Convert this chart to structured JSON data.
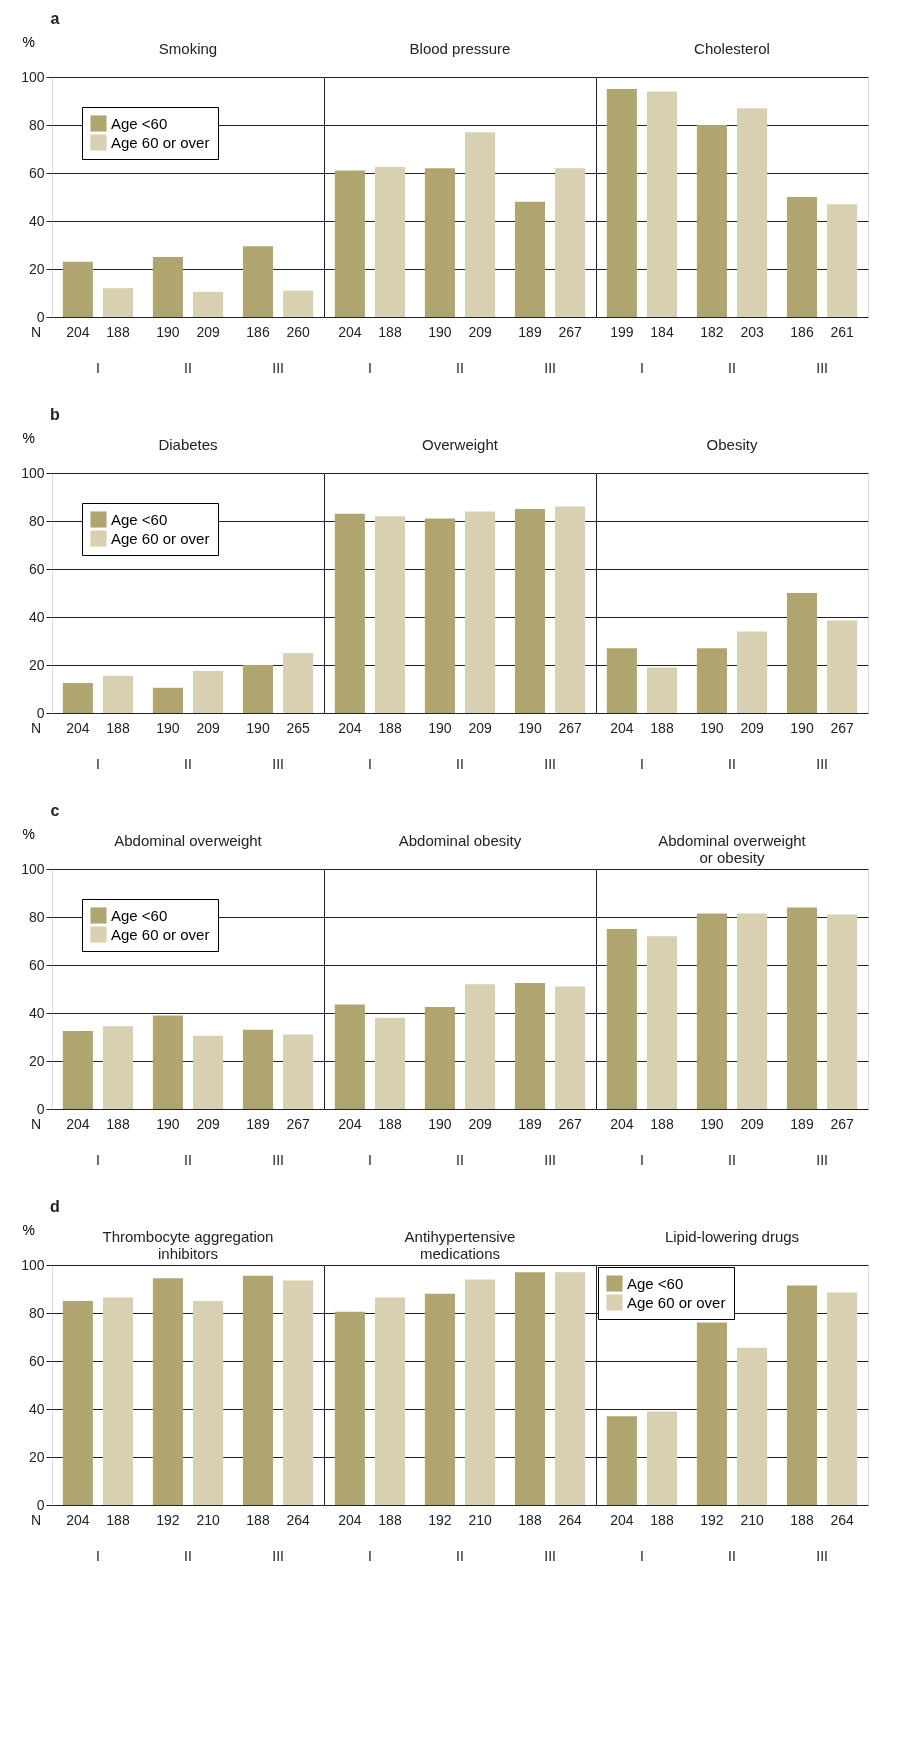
{
  "chart_data": [
    {
      "type": "bar",
      "title": "Smoking",
      "ylabel": "%",
      "categories": [
        "I",
        "II",
        "III"
      ],
      "ylim": [
        0,
        100
      ],
      "yticks": [
        0,
        20,
        40,
        60,
        80,
        100
      ],
      "grid": "y",
      "legend": "top left",
      "series": [
        {
          "name": "Age <60",
          "color": "#b1a56f",
          "values": [
            23,
            25,
            29.5
          ]
        },
        {
          "name": "Age 60 or over",
          "color": "#d8d0b0",
          "values": [
            12,
            10.5,
            11
          ]
        }
      ],
      "annotations": [
        "a",
        "N",
        "204",
        "188",
        "190",
        "209",
        "186",
        "260"
      ]
    },
    {
      "type": "bar",
      "title": "Blood pressure",
      "categories": [
        "I",
        "II",
        "III"
      ],
      "ylim": [
        0,
        100
      ],
      "yticks": [
        0,
        20,
        40,
        60,
        80,
        100
      ],
      "grid": "y",
      "tick_labels": "x",
      "series": [
        {
          "color": "#b1a56f",
          "values": [
            61,
            62,
            48
          ]
        },
        {
          "color": "#d8d0b0",
          "values": [
            62.5,
            77,
            62
          ]
        }
      ],
      "annotations": [
        "204",
        "188",
        "190",
        "209",
        "189",
        "267"
      ]
    },
    {
      "type": "bar",
      "title": "Cholesterol",
      "categories": [
        "I",
        "II",
        "III"
      ],
      "ylim": [
        0,
        100
      ],
      "yticks": [
        0,
        20,
        40,
        60,
        80,
        100
      ],
      "grid": "y",
      "tick_labels": "x",
      "series": [
        {
          "color": "#b1a56f",
          "values": [
            95,
            80,
            50
          ]
        },
        {
          "color": "#d8d0b0",
          "values": [
            94,
            87,
            47
          ]
        }
      ],
      "annotations": [
        "199",
        "184",
        "182",
        "203",
        "186",
        "261"
      ]
    },
    {
      "type": "bar",
      "title": "Diabetes",
      "ylabel": "%",
      "categories": [
        "I",
        "II",
        "III"
      ],
      "ylim": [
        0,
        100
      ],
      "yticks": [
        0,
        20,
        40,
        60,
        80,
        100
      ],
      "grid": "y",
      "legend": "top left",
      "series": [
        {
          "name": "Age <60",
          "color": "#b1a56f",
          "values": [
            12.5,
            10.5,
            20
          ]
        },
        {
          "name": "Age 60 or over",
          "color": "#d8d0b0",
          "values": [
            15.5,
            17.5,
            25
          ]
        }
      ],
      "annotations": [
        "b",
        "N",
        "204",
        "188",
        "190",
        "209",
        "190",
        "265"
      ]
    },
    {
      "type": "bar",
      "title": "Overweight",
      "categories": [
        "I",
        "II",
        "III"
      ],
      "ylim": [
        0,
        100
      ],
      "yticks": [
        0,
        20,
        40,
        60,
        80,
        100
      ],
      "grid": "y",
      "tick_labels": "x",
      "series": [
        {
          "color": "#b1a56f",
          "values": [
            83,
            81,
            85
          ]
        },
        {
          "color": "#d8d0b0",
          "values": [
            82,
            84,
            86
          ]
        }
      ],
      "annotations": [
        "204",
        "188",
        "190",
        "209",
        "190",
        "267"
      ]
    },
    {
      "type": "bar",
      "title": "Obesity",
      "categories": [
        "I",
        "II",
        "III"
      ],
      "ylim": [
        0,
        100
      ],
      "yticks": [
        0,
        20,
        40,
        60,
        80,
        100
      ],
      "grid": "y",
      "tick_labels": "x",
      "series": [
        {
          "color": "#b1a56f",
          "values": [
            27,
            27,
            50
          ]
        },
        {
          "color": "#d8d0b0",
          "values": [
            19,
            34,
            38.5
          ]
        }
      ],
      "annotations": [
        "204",
        "188",
        "190",
        "209",
        "190",
        "267"
      ]
    },
    {
      "type": "bar",
      "title": "Abdominal overweight",
      "ylabel": "%",
      "categories": [
        "I",
        "II",
        "III"
      ],
      "ylim": [
        0,
        100
      ],
      "yticks": [
        0,
        20,
        40,
        60,
        80,
        100
      ],
      "grid": "y",
      "legend": "top left",
      "series": [
        {
          "name": "Age <60",
          "color": "#b1a56f",
          "values": [
            32.5,
            39,
            33
          ]
        },
        {
          "name": "Age 60 or over",
          "color": "#d8d0b0",
          "values": [
            34.5,
            30.5,
            31
          ]
        }
      ],
      "annotations": [
        "c",
        "N",
        "204",
        "188",
        "190",
        "209",
        "189",
        "267"
      ]
    },
    {
      "type": "bar",
      "title": "Abdominal obesity",
      "categories": [
        "I",
        "II",
        "III"
      ],
      "ylim": [
        0,
        100
      ],
      "yticks": [
        0,
        20,
        40,
        60,
        80,
        100
      ],
      "grid": "y",
      "tick_labels": "x",
      "series": [
        {
          "color": "#b1a56f",
          "values": [
            43.5,
            42.5,
            52.5
          ]
        },
        {
          "color": "#d8d0b0",
          "values": [
            38,
            52,
            51
          ]
        }
      ],
      "annotations": [
        "204",
        "188",
        "190",
        "209",
        "189",
        "267"
      ]
    },
    {
      "type": "bar",
      "title": "Abdominal overweight\nor obesity",
      "categories": [
        "I",
        "II",
        "III"
      ],
      "ylim": [
        0,
        100
      ],
      "yticks": [
        0,
        20,
        40,
        60,
        80,
        100
      ],
      "grid": "y",
      "tick_labels": "x",
      "series": [
        {
          "color": "#b1a56f",
          "values": [
            75,
            81.5,
            84
          ]
        },
        {
          "color": "#d8d0b0",
          "values": [
            72,
            81.5,
            81
          ]
        }
      ],
      "annotations": [
        "204",
        "188",
        "190",
        "209",
        "189",
        "267"
      ]
    },
    {
      "type": "bar",
      "title": "Thrombocyte aggregation\ninhibitors",
      "ylabel": "%",
      "categories": [
        "I",
        "II",
        "III"
      ],
      "ylim": [
        0,
        100
      ],
      "yticks": [
        0,
        20,
        40,
        60,
        80,
        100
      ],
      "grid": "y",
      "series": [
        {
          "color": "#b1a56f",
          "values": [
            85,
            94.5,
            95.5
          ]
        },
        {
          "color": "#d8d0b0",
          "values": [
            86.5,
            85,
            93.5
          ]
        }
      ],
      "annotations": [
        "d",
        "N",
        "204",
        "188",
        "192",
        "210",
        "188",
        "264"
      ]
    },
    {
      "type": "bar",
      "title": "Antihypertensive\nmedications",
      "categories": [
        "I",
        "II",
        "III"
      ],
      "ylim": [
        0,
        100
      ],
      "yticks": [
        0,
        20,
        40,
        60,
        80,
        100
      ],
      "grid": "y",
      "tick_labels": "x",
      "series": [
        {
          "color": "#b1a56f",
          "values": [
            80.5,
            88,
            97
          ]
        },
        {
          "color": "#d8d0b0",
          "values": [
            86.5,
            94,
            97
          ]
        }
      ],
      "annotations": [
        "204",
        "188",
        "192",
        "210",
        "188",
        "264"
      ]
    },
    {
      "type": "bar",
      "title": "Lipid-lowering drugs",
      "categories": [
        "I",
        "II",
        "III"
      ],
      "ylim": [
        0,
        100
      ],
      "yticks": [
        0,
        20,
        40,
        60,
        80,
        100
      ],
      "grid": "y",
      "tick_labels": "x",
      "legend": "top left",
      "series": [
        {
          "name": "Age <60",
          "color": "#b1a56f",
          "values": [
            37,
            76,
            91.5
          ]
        },
        {
          "name": "Age 60 or over",
          "color": "#d8d0b0",
          "values": [
            39,
            65.5,
            88.5
          ]
        }
      ],
      "annotations": [
        "204",
        "188",
        "192",
        "210",
        "188",
        "264"
      ]
    }
  ]
}
